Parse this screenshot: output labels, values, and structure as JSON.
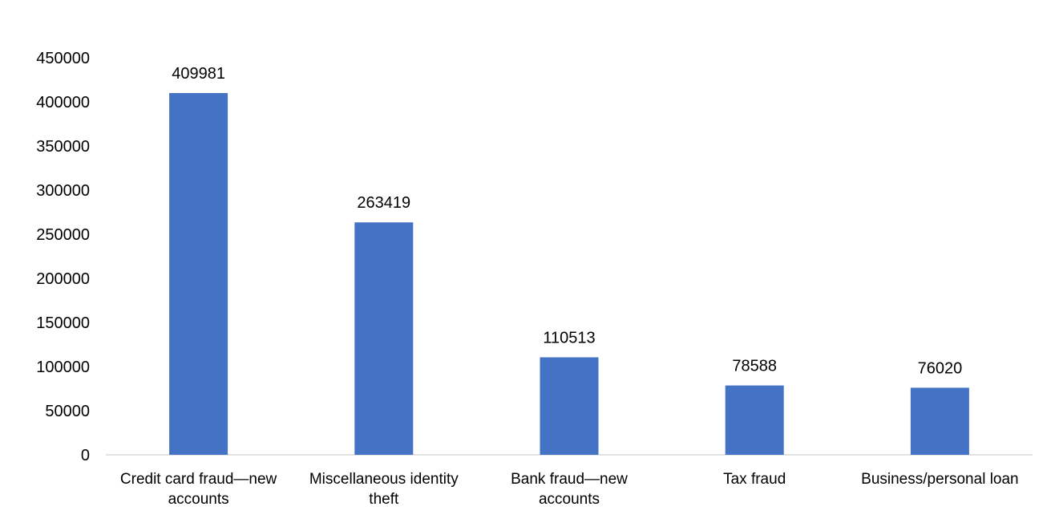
{
  "chart_data": {
    "type": "bar",
    "title": "",
    "xlabel": "",
    "ylabel": "",
    "categories": [
      [
        "Credit card fraud—new",
        "accounts"
      ],
      [
        "Miscellaneous identity",
        "theft"
      ],
      [
        "Bank fraud—new",
        "accounts"
      ],
      [
        "Tax fraud"
      ],
      [
        "Business/personal loan"
      ]
    ],
    "values": [
      409981,
      263419,
      110513,
      78588,
      76020
    ],
    "data_labels": [
      "409981",
      "263419",
      "110513",
      "78588",
      "76020"
    ],
    "yticks": [
      "0",
      "50000",
      "100000",
      "150000",
      "200000",
      "250000",
      "300000",
      "350000",
      "400000",
      "450000"
    ],
    "ylim": [
      0,
      450000
    ],
    "grid": false,
    "legend": "none",
    "bar_color": "#4472C4",
    "axis_color": "#D9D9D9"
  }
}
